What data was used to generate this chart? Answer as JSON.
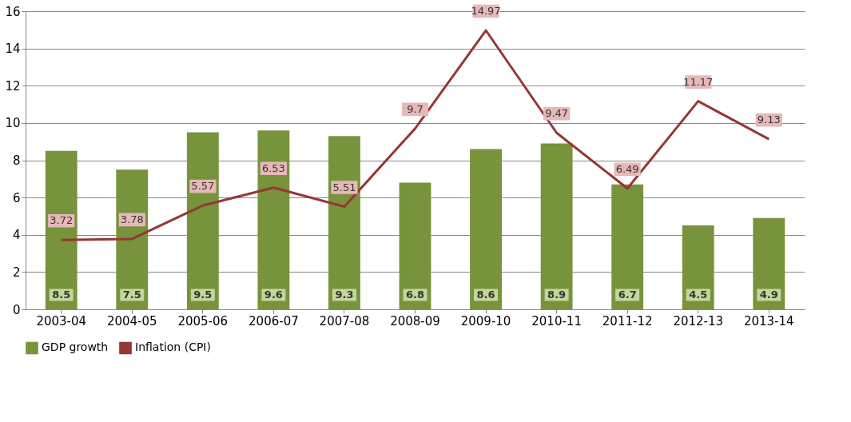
{
  "chart_data": {
    "type": "bar",
    "categories": [
      "2003-04",
      "2004-05",
      "2005-06",
      "2006-07",
      "2007-08",
      "2008-09",
      "2009-10",
      "2010-11",
      "2011-12",
      "2012-13",
      "2013-14"
    ],
    "series": [
      {
        "name": "GDP growth",
        "color": "#77933c",
        "values": [
          8.5,
          7.5,
          9.5,
          9.6,
          9.3,
          6.8,
          8.6,
          8.9,
          6.7,
          4.5,
          4.9
        ]
      },
      {
        "name": "Inflation (CPI)",
        "type": "line",
        "color": "#953735",
        "values": [
          3.72,
          3.78,
          5.57,
          6.53,
          5.51,
          9.7,
          14.97,
          9.47,
          6.49,
          11.17,
          9.13
        ]
      }
    ],
    "ylim": [
      0,
      16
    ],
    "yticks": [
      0,
      2,
      4,
      6,
      8,
      10,
      12,
      14,
      16
    ],
    "grid": "y",
    "legend": "bottom",
    "data_labels": true
  }
}
